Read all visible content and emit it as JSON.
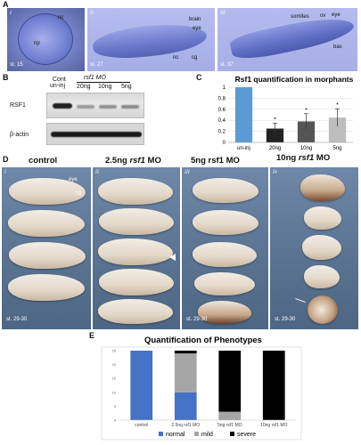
{
  "panels": {
    "A": {
      "label": "A",
      "images": [
        {
          "roman": "i",
          "stage": "st. 15",
          "annotations": [
            "nc",
            "np"
          ]
        },
        {
          "roman": "ii",
          "stage": "st. 27",
          "annotations": [
            "brain",
            "eye",
            "nc",
            "cg"
          ]
        },
        {
          "roman": "iii",
          "stage": "st. 37",
          "annotations": [
            "somites",
            "ov",
            "eye",
            "bas"
          ]
        }
      ]
    },
    "B": {
      "label": "B",
      "cont_label": "Cont",
      "uninj_label": "un-inj",
      "mo_label": "rsf1 MO",
      "lanes": [
        "20ng",
        "10ng",
        "5ng"
      ],
      "rows": [
        "RSF1",
        "β-actin"
      ]
    },
    "C": {
      "label": "C"
    },
    "D": {
      "label": "D",
      "columns": [
        {
          "roman": "i",
          "title": "control",
          "stage": "st. 29-30",
          "annotations": [
            "eye",
            "cg"
          ]
        },
        {
          "roman": "ii",
          "title_prefix": "2.5ng",
          "title_gene": "rsf1",
          "title_suffix": "MO",
          "stage": ""
        },
        {
          "roman": "iii",
          "title": "5ng rsf1 MO",
          "stage": "st. 29-30"
        },
        {
          "roman": "iv",
          "title_prefix": "10ng",
          "title_gene": "rsf1",
          "title_suffix": "MO",
          "stage": "st. 29-30"
        }
      ]
    },
    "E": {
      "label": "E"
    }
  },
  "chart_data": [
    {
      "type": "bar",
      "title": "Rsf1 quantification in morphants",
      "categories": [
        "un-inj",
        "20ng",
        "10ng",
        "5ng"
      ],
      "values": [
        1.0,
        0.25,
        0.38,
        0.45
      ],
      "errors": [
        0,
        0.1,
        0.14,
        0.16
      ],
      "significance": [
        "",
        "*",
        "*",
        "*"
      ],
      "colors": [
        "#5b9bd5",
        "#222222",
        "#555555",
        "#bdbdbd"
      ],
      "yticks": [
        0,
        0.2,
        0.4,
        0.6,
        0.8,
        1
      ],
      "ylim": [
        0,
        1
      ]
    },
    {
      "type": "bar",
      "stacked": true,
      "title": "Quantification of Phenotypes",
      "categories": [
        "control",
        "2.5ng rsf1 MO",
        "5ng rsf1 MO",
        "10ng rsf1 MO"
      ],
      "series": [
        {
          "name": "normal",
          "color": "#4472c4",
          "values": [
            25,
            10,
            0,
            0
          ]
        },
        {
          "name": "mild",
          "color": "#a5a5a5",
          "values": [
            0,
            14,
            3,
            0
          ]
        },
        {
          "name": "severe",
          "color": "#000000",
          "values": [
            0,
            1,
            22,
            25
          ]
        }
      ],
      "yticks": [
        0,
        5,
        10,
        15,
        20,
        25
      ],
      "ylim": [
        0,
        25
      ],
      "legend_position": "bottom"
    }
  ]
}
